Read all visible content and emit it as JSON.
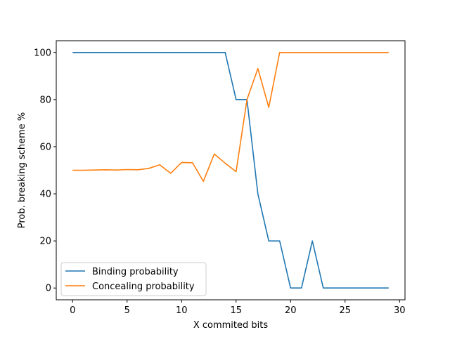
{
  "chart_data": {
    "type": "line",
    "title": "",
    "xlabel": "X commited bits",
    "ylabel": "Prob. breaking scheme %",
    "xlim": [
      -1.5,
      30.5
    ],
    "ylim": [
      -5,
      105
    ],
    "xticks": [
      0,
      5,
      10,
      15,
      20,
      25,
      30
    ],
    "yticks": [
      0,
      20,
      40,
      60,
      80,
      100
    ],
    "grid": false,
    "legend_position": "lower-left",
    "x": [
      0,
      1,
      2,
      3,
      4,
      5,
      6,
      7,
      8,
      9,
      10,
      11,
      12,
      13,
      14,
      15,
      16,
      17,
      18,
      19,
      20,
      21,
      22,
      23,
      24,
      25,
      26,
      27,
      28,
      29
    ],
    "series": [
      {
        "name": "Binding probability",
        "color": "#1f77b4",
        "values": [
          100,
          100,
          100,
          100,
          100,
          100,
          100,
          100,
          100,
          100,
          100,
          100,
          100,
          100,
          100,
          80,
          80,
          40,
          20,
          20,
          0,
          0,
          20,
          0,
          0,
          0,
          0,
          0,
          0,
          0
        ]
      },
      {
        "name": "Concealing probability",
        "color": "#ff7f0e",
        "values": [
          50,
          50,
          50.1,
          50.2,
          50.1,
          50.3,
          50.2,
          50.8,
          52.3,
          48.7,
          53.3,
          53.2,
          45.3,
          56.9,
          53,
          49.4,
          80,
          93.2,
          76.7,
          100,
          100,
          100,
          100,
          100,
          100,
          100,
          100,
          100,
          100,
          100
        ]
      }
    ]
  }
}
